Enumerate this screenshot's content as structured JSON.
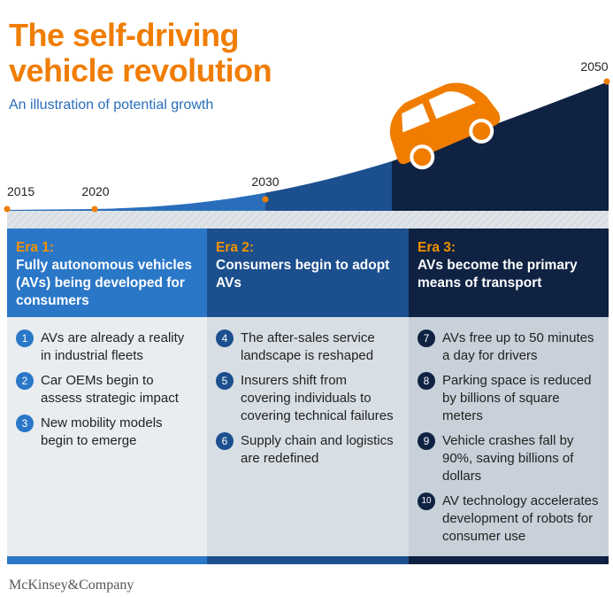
{
  "header": {
    "title": "The self-driving vehicle revolution",
    "subtitle": "An illustration of potential growth"
  },
  "timeline": {
    "years": [
      "2015",
      "2020",
      "2030",
      "2050"
    ]
  },
  "eras": [
    {
      "label": "Era 1:",
      "heading": "Fully autonomous vehicles (AVs) being developed for consumers",
      "items": [
        {
          "number": 1,
          "text": "AVs are already a reality in industrial fleets"
        },
        {
          "number": 2,
          "text": "Car OEMs begin to assess strategic impact"
        },
        {
          "number": 3,
          "text": "New mobility models begin to emerge"
        }
      ]
    },
    {
      "label": "Era 2:",
      "heading": "Consumers begin to adopt AVs",
      "items": [
        {
          "number": 4,
          "text": "The after-sales service landscape is reshaped"
        },
        {
          "number": 5,
          "text": "Insurers shift from covering individuals to covering technical failures"
        },
        {
          "number": 6,
          "text": "Supply chain and logistics are redefined"
        }
      ]
    },
    {
      "label": "Era 3:",
      "heading": "AVs become the primary means of transport",
      "items": [
        {
          "number": 7,
          "text": "AVs free up to 50 minutes a day for drivers"
        },
        {
          "number": 8,
          "text": "Parking space is reduced by billions of square meters"
        },
        {
          "number": 9,
          "text": "Vehicle crashes fall by 90%, saving billions of dollars"
        },
        {
          "number": 10,
          "text": "AV technology accelerates development of robots for consumer use"
        }
      ]
    }
  ],
  "footer": {
    "brand": "McKinsey&Company"
  }
}
